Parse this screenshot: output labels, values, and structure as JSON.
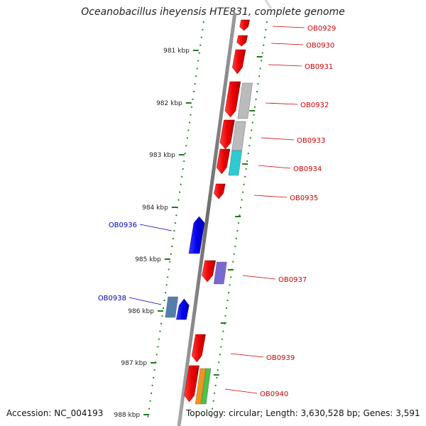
{
  "title": "Oceanobacillus iheyensis HTE831, complete genome",
  "accession": "Accession: NC_004193",
  "info": "Topology: circular; Length: 3,630,528 bp; Genes: 3,591",
  "colors": {
    "backbone": "#7a7a7a",
    "tick": "#1f7a1f",
    "forward_label": "#cc0000",
    "reverse_label": "#0000bb"
  },
  "scale_ticks": [
    "981 kbp",
    "982 kbp",
    "983 kbp",
    "984 kbp",
    "985 kbp",
    "986 kbp",
    "987 kbp",
    "988 kbp"
  ],
  "genes": [
    {
      "id": "OB0929",
      "strand": "forward",
      "color": "#ee0000"
    },
    {
      "id": "OB0930",
      "strand": "forward",
      "color": "#ee0000"
    },
    {
      "id": "OB0931",
      "strand": "forward",
      "color": "#ee0000"
    },
    {
      "id": "OB0932",
      "strand": "forward",
      "color": "#ee0000"
    },
    {
      "id": "OB0933",
      "strand": "forward",
      "color": "#ee0000"
    },
    {
      "id": "OB0934",
      "strand": "forward",
      "color": "#ee0000"
    },
    {
      "id": "OB0935",
      "strand": "forward",
      "color": "#ee0000"
    },
    {
      "id": "OB0936",
      "strand": "reverse",
      "color": "#0000ee"
    },
    {
      "id": "OB0937",
      "strand": "forward",
      "color": "#ee0000"
    },
    {
      "id": "OB0938",
      "strand": "reverse",
      "color": "#0000ee"
    },
    {
      "id": "OB0939",
      "strand": "forward",
      "color": "#ee0000"
    },
    {
      "id": "OB0940",
      "strand": "forward",
      "color": "#ee0000"
    }
  ],
  "category_boxes": [
    {
      "name": "cog-gray",
      "color": "#b8b8b8"
    },
    {
      "name": "cog-gray",
      "color": "#b8b8b8"
    },
    {
      "name": "cog-cyan",
      "color": "#22c8d0"
    },
    {
      "name": "cog-purple",
      "color": "#7060d0"
    },
    {
      "name": "cog-steelblue",
      "color": "#4a78a8"
    },
    {
      "name": "cog-orange",
      "color": "#f09010"
    },
    {
      "name": "cog-green",
      "color": "#40c040"
    }
  ]
}
